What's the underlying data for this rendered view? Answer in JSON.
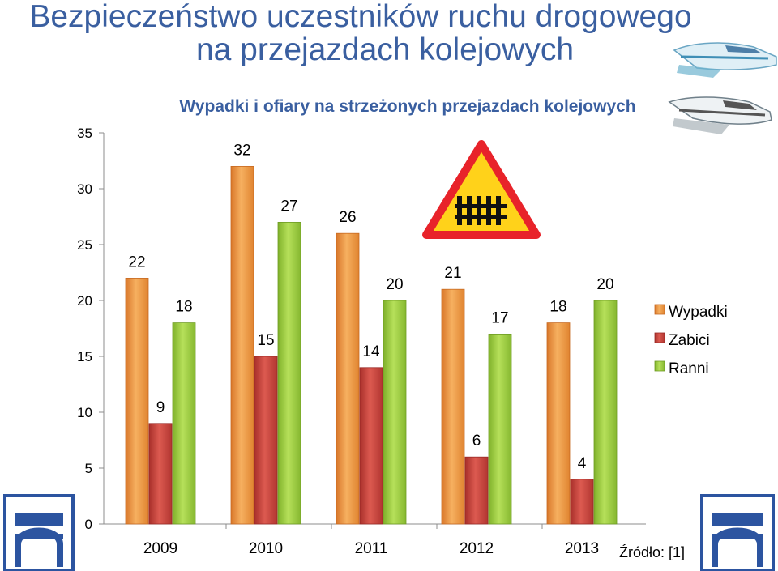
{
  "slide": {
    "title_line1": "Bezpieczeństwo uczestników ruchu drogowego",
    "title_line2": "na przejazdach kolejowych"
  },
  "source_note": "Źródło: [1]",
  "decor": {
    "sign": "railway-crossing-warning-sign",
    "trains": "high-speed-train-illustration",
    "logos": "railway-logo"
  },
  "chart_data": {
    "type": "bar",
    "title": "Wypadki i ofiary na strzeżonych przejazdach kolejowych",
    "categories": [
      "2009",
      "2010",
      "2011",
      "2012",
      "2013"
    ],
    "series": [
      {
        "name": "Wypadki",
        "values": [
          22,
          32,
          26,
          21,
          18
        ],
        "color": "#f09a3a"
      },
      {
        "name": "Zabici",
        "values": [
          9,
          15,
          14,
          6,
          4
        ],
        "color": "#c8403a"
      },
      {
        "name": "Ranni",
        "values": [
          18,
          27,
          20,
          17,
          20
        ],
        "color": "#9ccc3c"
      }
    ],
    "ylim": [
      0,
      35
    ],
    "yticks": [
      0,
      5,
      10,
      15,
      20,
      25,
      30,
      35
    ],
    "grid": false,
    "legend_position": "right",
    "xlabel": "",
    "ylabel": ""
  }
}
